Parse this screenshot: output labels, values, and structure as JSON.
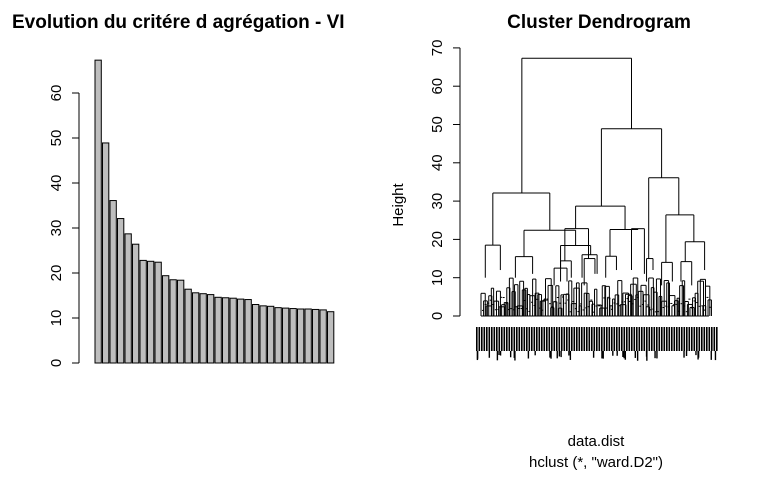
{
  "chart_data": [
    {
      "type": "bar",
      "title": "Evolution du critére d agrégation - VI",
      "xlabel": "",
      "ylabel": "",
      "ylim": [
        0,
        70
      ],
      "yticks": [
        0,
        10,
        20,
        30,
        40,
        50,
        60
      ],
      "bar_color": "#bebebe",
      "values": [
        67.3,
        48.9,
        36.1,
        32.1,
        28.7,
        26.4,
        22.8,
        22.6,
        22.4,
        19.4,
        18.5,
        18.4,
        16.4,
        15.6,
        15.4,
        15.2,
        14.6,
        14.5,
        14.4,
        14.2,
        14.1,
        13.0,
        12.7,
        12.6,
        12.3,
        12.2,
        12.1,
        12.0,
        12.0,
        11.9,
        11.8,
        11.4
      ]
    },
    {
      "type": "dendrogram",
      "title": "Cluster Dendrogram",
      "xlabel": "data.dist",
      "sublabel": "hclust (*, \"ward.D2\")",
      "ylabel": "Height",
      "ylim": [
        0,
        70
      ],
      "yticks": [
        0,
        10,
        20,
        30,
        40,
        50,
        60,
        70
      ],
      "merges": [
        {
          "h": 67.3,
          "left": 0.19,
          "right": 0.7
        },
        {
          "h": 48.9,
          "left": 0.56,
          "right": 0.85
        },
        {
          "h": 36.1,
          "left": 0.76,
          "right": 0.95
        },
        {
          "h": 32.1,
          "left": 0.06,
          "right": 0.32
        },
        {
          "h": 28.7,
          "left": 0.44,
          "right": 0.68
        },
        {
          "h": 26.4,
          "left": 0.88,
          "right": 1.02
        },
        {
          "h": 22.8,
          "left": 0.37,
          "right": 0.51
        },
        {
          "h": 22.6,
          "left": 0.63,
          "right": 0.73
        },
        {
          "h": 22.4,
          "left": 0.2,
          "right": 0.44
        },
        {
          "h": 19.4,
          "left": 0.98,
          "right": 1.06
        },
        {
          "h": 18.5,
          "left": 0.01,
          "right": 0.11
        },
        {
          "h": 18.4,
          "left": 0.33,
          "right": 0.55
        }
      ]
    }
  ]
}
